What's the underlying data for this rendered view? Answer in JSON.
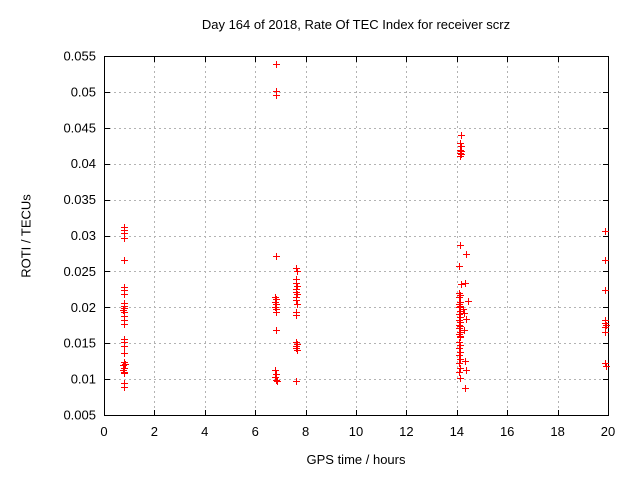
{
  "window": {
    "background": "#ffffff"
  },
  "chart_data": {
    "type": "scatter",
    "title": "Day 164 of 2018, Rate Of TEC Index for receiver scrz",
    "xlabel": "GPS time / hours",
    "ylabel": "ROTI / TECUs",
    "xlim": [
      0,
      20
    ],
    "ylim": [
      0.005,
      0.055
    ],
    "xticks": [
      0,
      2,
      4,
      6,
      8,
      10,
      12,
      14,
      16,
      18,
      20
    ],
    "xtick_labels": [
      "0",
      "2",
      "4",
      "6",
      "8",
      "10",
      "12",
      "14",
      "16",
      "18",
      "20"
    ],
    "yticks": [
      0.005,
      0.01,
      0.015,
      0.02,
      0.025,
      0.03,
      0.035,
      0.04,
      0.045,
      0.05,
      0.055
    ],
    "ytick_labels": [
      "0.005",
      "0.01",
      "0.015",
      "0.02",
      "0.025",
      "0.03",
      "0.035",
      "0.04",
      "0.045",
      "0.05",
      "0.055"
    ],
    "grid": true,
    "legend": "none",
    "marker": {
      "shape": "plus",
      "color": "#ff0000",
      "size": 7
    },
    "grid_color": "#b3b3b3",
    "frame_color": "#000000",
    "series": [
      {
        "name": "ROTI",
        "points": [
          [
            0.79,
            0.0312
          ],
          [
            0.81,
            0.0307
          ],
          [
            0.79,
            0.0303
          ],
          [
            0.8,
            0.0297
          ],
          [
            0.79,
            0.0266
          ],
          [
            0.8,
            0.0228
          ],
          [
            0.78,
            0.0224
          ],
          [
            0.8,
            0.0219
          ],
          [
            0.79,
            0.0206
          ],
          [
            0.81,
            0.0202
          ],
          [
            0.79,
            0.0199
          ],
          [
            0.77,
            0.0196
          ],
          [
            0.8,
            0.0193
          ],
          [
            0.78,
            0.0188
          ],
          [
            0.8,
            0.0183
          ],
          [
            0.79,
            0.0177
          ],
          [
            0.8,
            0.0156
          ],
          [
            0.78,
            0.0151
          ],
          [
            0.8,
            0.0146
          ],
          [
            0.79,
            0.0137
          ],
          [
            0.79,
            0.0124
          ],
          [
            0.83,
            0.0121
          ],
          [
            0.77,
            0.0119
          ],
          [
            0.8,
            0.0116
          ],
          [
            0.76,
            0.0113
          ],
          [
            0.81,
            0.011
          ],
          [
            0.79,
            0.0108
          ],
          [
            0.8,
            0.0094
          ],
          [
            0.79,
            0.0089
          ],
          [
            6.82,
            0.0539
          ],
          [
            6.81,
            0.0501
          ],
          [
            6.84,
            0.0495
          ],
          [
            6.82,
            0.0272
          ],
          [
            6.8,
            0.0215
          ],
          [
            6.83,
            0.0211
          ],
          [
            6.8,
            0.0208
          ],
          [
            6.82,
            0.0204
          ],
          [
            6.78,
            0.02
          ],
          [
            6.83,
            0.0197
          ],
          [
            6.81,
            0.0194
          ],
          [
            6.82,
            0.0169
          ],
          [
            6.8,
            0.0113
          ],
          [
            6.84,
            0.0107
          ],
          [
            6.78,
            0.0103
          ],
          [
            6.82,
            0.0099
          ],
          [
            6.86,
            0.0097
          ],
          [
            7.61,
            0.0255
          ],
          [
            7.65,
            0.025
          ],
          [
            7.63,
            0.0239
          ],
          [
            7.61,
            0.0234
          ],
          [
            7.64,
            0.023
          ],
          [
            7.62,
            0.0226
          ],
          [
            7.6,
            0.0222
          ],
          [
            7.64,
            0.0218
          ],
          [
            7.62,
            0.0214
          ],
          [
            7.6,
            0.021
          ],
          [
            7.64,
            0.0205
          ],
          [
            7.62,
            0.0194
          ],
          [
            7.6,
            0.0189
          ],
          [
            7.63,
            0.0152
          ],
          [
            7.65,
            0.0149
          ],
          [
            7.6,
            0.0146
          ],
          [
            7.62,
            0.0143
          ],
          [
            7.66,
            0.014
          ],
          [
            7.62,
            0.0097
          ],
          [
            14.15,
            0.044
          ],
          [
            14.13,
            0.0429
          ],
          [
            14.16,
            0.0425
          ],
          [
            14.11,
            0.0419
          ],
          [
            14.15,
            0.0417
          ],
          [
            14.13,
            0.0415
          ],
          [
            14.17,
            0.0413
          ],
          [
            14.14,
            0.0411
          ],
          [
            14.11,
            0.0287
          ],
          [
            14.38,
            0.0274
          ],
          [
            14.09,
            0.0258
          ],
          [
            14.33,
            0.0234
          ],
          [
            14.18,
            0.0232
          ],
          [
            14.1,
            0.022
          ],
          [
            14.13,
            0.0217
          ],
          [
            14.09,
            0.0214
          ],
          [
            14.44,
            0.0209
          ],
          [
            14.12,
            0.0207
          ],
          [
            14.1,
            0.0204
          ],
          [
            14.13,
            0.0202
          ],
          [
            14.09,
            0.02
          ],
          [
            14.24,
            0.0198
          ],
          [
            14.11,
            0.0195
          ],
          [
            14.27,
            0.0192
          ],
          [
            14.09,
            0.019
          ],
          [
            14.13,
            0.0187
          ],
          [
            14.38,
            0.0184
          ],
          [
            14.1,
            0.0182
          ],
          [
            14.12,
            0.0179
          ],
          [
            14.09,
            0.0176
          ],
          [
            14.13,
            0.0174
          ],
          [
            14.1,
            0.0171
          ],
          [
            14.29,
            0.0168
          ],
          [
            14.11,
            0.0166
          ],
          [
            14.09,
            0.0163
          ],
          [
            14.13,
            0.016
          ],
          [
            14.11,
            0.0158
          ],
          [
            14.1,
            0.0151
          ],
          [
            14.13,
            0.0147
          ],
          [
            14.09,
            0.0144
          ],
          [
            14.12,
            0.0138
          ],
          [
            14.1,
            0.0134
          ],
          [
            14.11,
            0.0128
          ],
          [
            14.33,
            0.0125
          ],
          [
            14.09,
            0.0122
          ],
          [
            14.13,
            0.0115
          ],
          [
            14.38,
            0.0113
          ],
          [
            14.1,
            0.011
          ],
          [
            14.11,
            0.0101
          ],
          [
            14.33,
            0.0088
          ],
          [
            19.9,
            0.0306
          ],
          [
            19.9,
            0.0266
          ],
          [
            19.9,
            0.0224
          ],
          [
            19.9,
            0.0183
          ],
          [
            19.88,
            0.0178
          ],
          [
            19.92,
            0.0176
          ],
          [
            19.9,
            0.0172
          ],
          [
            19.9,
            0.0166
          ],
          [
            19.88,
            0.0122
          ],
          [
            19.92,
            0.0118
          ]
        ]
      }
    ]
  }
}
